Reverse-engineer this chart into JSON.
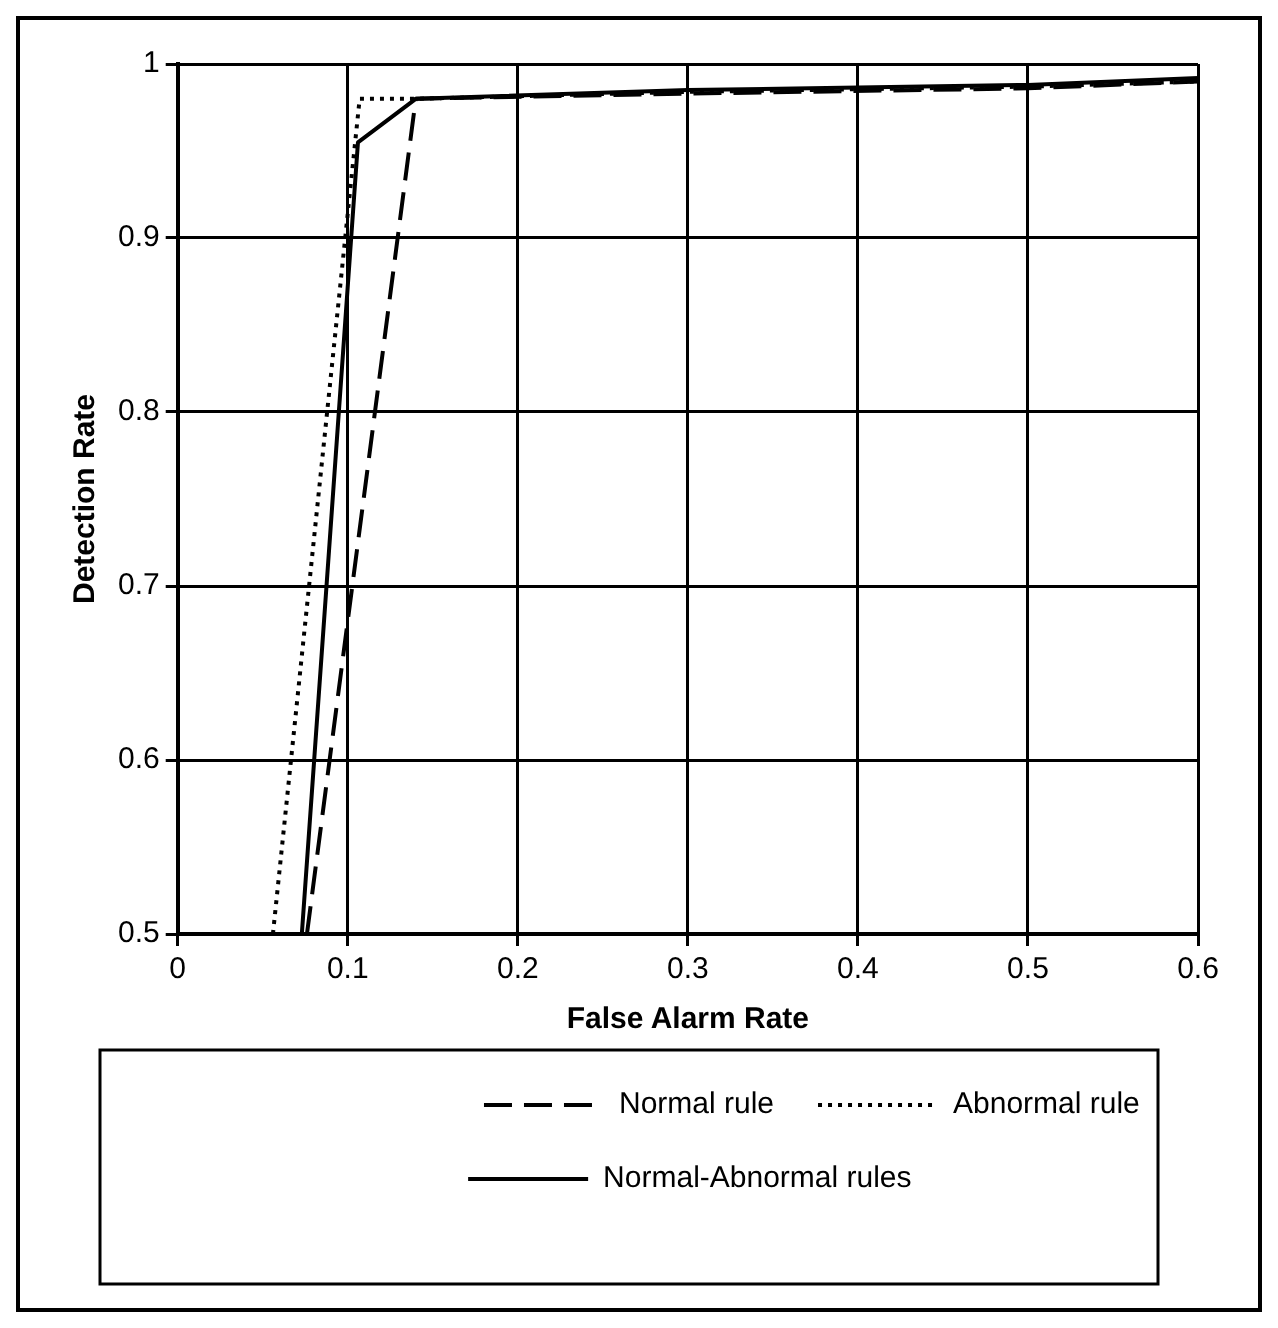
{
  "chart_data": {
    "type": "line",
    "xlabel": "False Alarm Rate",
    "ylabel": "Detection Rate",
    "xlim": [
      0,
      0.6
    ],
    "xticks": [
      0,
      0.1,
      0.2,
      0.3,
      0.4,
      0.5,
      0.6
    ],
    "ylim": [
      0.5,
      1
    ],
    "yticks": [
      0.5,
      0.6,
      0.7,
      0.8,
      0.9,
      1
    ],
    "grid": true,
    "legend": "bottom",
    "marker": "none",
    "series": [
      {
        "name": "Normal rule",
        "color": "#000000",
        "line_style": "dashed",
        "x": [
          0.076,
          0.14,
          0.3,
          0.5,
          0.6
        ],
        "values": [
          0.5,
          0.98,
          0.983,
          0.986,
          0.99
        ]
      },
      {
        "name": "Abnormal rule",
        "color": "#000000",
        "line_style": "dotted",
        "x": [
          0.056,
          0.107,
          0.14,
          0.3,
          0.5,
          0.6
        ],
        "values": [
          0.5,
          0.98,
          0.98,
          0.984,
          0.987,
          0.99
        ]
      },
      {
        "name": "Normal-Abnormal rules",
        "color": "#000000",
        "line_style": "solid",
        "x": [
          0.073,
          0.106,
          0.14,
          0.3,
          0.5,
          0.6
        ],
        "values": [
          0.5,
          0.955,
          0.98,
          0.985,
          0.988,
          0.992
        ]
      }
    ]
  }
}
